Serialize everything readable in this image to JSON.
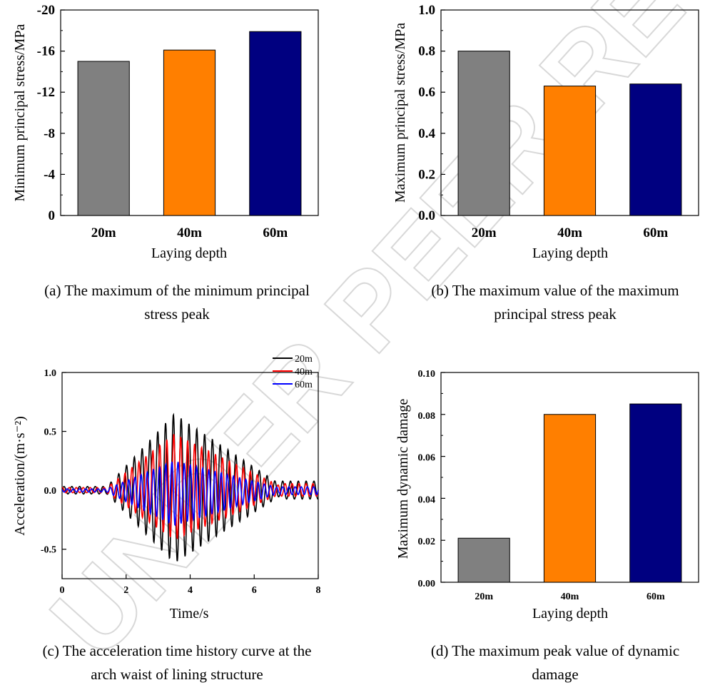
{
  "watermark": "UNDER PEER REVIEW",
  "colors": {
    "gray": "#808080",
    "orange": "#ff7f00",
    "navy": "#000080",
    "black": "#000000",
    "red": "#ff0000",
    "blue": "#0000ff"
  },
  "chart_data": [
    {
      "id": "a",
      "type": "bar",
      "categories": [
        "20m",
        "40m",
        "60m"
      ],
      "values": [
        -15.0,
        -16.1,
        -17.9
      ],
      "colors": [
        "#808080",
        "#ff7f00",
        "#000080"
      ],
      "ylim": [
        0,
        -20
      ],
      "yticks": [
        "0",
        "-4",
        "-8",
        "-12",
        "-16",
        "-20"
      ],
      "ylabel": "Minimum principal stress/MPa",
      "xlabel": "Laying depth",
      "caption_line1": "(a) The maximum of the minimum principal",
      "caption_line2": "stress peak"
    },
    {
      "id": "b",
      "type": "bar",
      "categories": [
        "20m",
        "40m",
        "60m"
      ],
      "values": [
        0.8,
        0.63,
        0.64
      ],
      "colors": [
        "#808080",
        "#ff7f00",
        "#000080"
      ],
      "ylim": [
        0,
        1.0
      ],
      "yticks": [
        "0.0",
        "0.2",
        "0.4",
        "0.6",
        "0.8",
        "1.0"
      ],
      "ylabel": "Maximum principal stress/MPa",
      "xlabel": "Laying depth",
      "caption_line1": "(b) The maximum value of the maximum",
      "caption_line2": "principal stress peak"
    },
    {
      "id": "c",
      "type": "line",
      "xlim": [
        0,
        8
      ],
      "ylim": [
        -0.75,
        1.0
      ],
      "xticks": [
        "0",
        "2",
        "4",
        "6",
        "8"
      ],
      "yticks": [
        "-0.5",
        "0.0",
        "0.5",
        "1.0"
      ],
      "xlabel": "Time/s",
      "ylabel": "Acceleration/(m·s⁻²)",
      "series": [
        {
          "name": "20m",
          "color": "#000000",
          "peak": 0.65,
          "trough": -0.62
        },
        {
          "name": "40m",
          "color": "#ff0000",
          "peak": 0.48,
          "trough": -0.42
        },
        {
          "name": "60m",
          "color": "#0000ff",
          "peak": 0.25,
          "trough": -0.3
        }
      ],
      "legend": "top-right",
      "caption_line1": "(c) The acceleration time history curve at the",
      "caption_line2": "arch waist of lining structure"
    },
    {
      "id": "d",
      "type": "bar",
      "categories": [
        "20m",
        "40m",
        "60m"
      ],
      "values": [
        0.021,
        0.08,
        0.085
      ],
      "colors": [
        "#808080",
        "#ff7f00",
        "#000080"
      ],
      "ylim": [
        0,
        0.1
      ],
      "yticks": [
        "0.00",
        "0.02",
        "0.04",
        "0.06",
        "0.08",
        "0.10"
      ],
      "ylabel": "Maximum dynamic damage",
      "xlabel": "Laying depth",
      "caption_line1": "(d) The maximum peak value of dynamic",
      "caption_line2": "damage"
    }
  ]
}
